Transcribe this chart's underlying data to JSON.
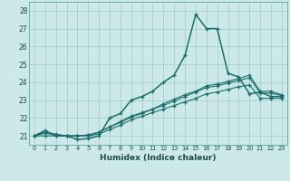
{
  "xlabel": "Humidex (Indice chaleur)",
  "background_color": "#cce8e8",
  "grid_color": "#a0cccc",
  "line_color": "#1a6e6a",
  "xlim_min": -0.5,
  "xlim_max": 23.5,
  "ylim_min": 20.5,
  "ylim_max": 28.5,
  "yticks": [
    21,
    22,
    23,
    24,
    25,
    26,
    27,
    28
  ],
  "xtick_labels": [
    "0",
    "1",
    "2",
    "3",
    "4",
    "5",
    "6",
    "7",
    "8",
    "9",
    "10",
    "11",
    "12",
    "13",
    "14",
    "15",
    "16",
    "17",
    "18",
    "19",
    "20",
    "21",
    "22",
    "23"
  ],
  "series1": [
    21.0,
    21.3,
    21.0,
    21.0,
    20.8,
    20.85,
    21.0,
    22.0,
    22.25,
    23.0,
    23.2,
    23.5,
    24.0,
    24.4,
    25.5,
    27.8,
    27.0,
    27.0,
    24.5,
    24.3,
    23.35,
    23.45,
    23.2,
    23.2
  ],
  "series2": [
    21.0,
    21.2,
    21.1,
    21.0,
    21.0,
    21.05,
    21.2,
    21.5,
    21.8,
    22.1,
    22.3,
    22.5,
    22.8,
    23.05,
    23.3,
    23.5,
    23.8,
    23.9,
    24.05,
    24.2,
    24.4,
    23.5,
    23.5,
    23.3
  ],
  "series3": [
    21.0,
    21.15,
    21.05,
    21.0,
    21.0,
    21.05,
    21.2,
    21.5,
    21.75,
    22.05,
    22.25,
    22.5,
    22.7,
    22.95,
    23.2,
    23.45,
    23.7,
    23.8,
    23.95,
    24.1,
    24.25,
    23.4,
    23.4,
    23.25
  ],
  "series4": [
    21.0,
    21.0,
    21.0,
    21.0,
    21.0,
    21.0,
    21.1,
    21.35,
    21.6,
    21.9,
    22.1,
    22.3,
    22.5,
    22.7,
    22.9,
    23.1,
    23.35,
    23.45,
    23.6,
    23.75,
    23.85,
    23.1,
    23.1,
    23.1
  ]
}
